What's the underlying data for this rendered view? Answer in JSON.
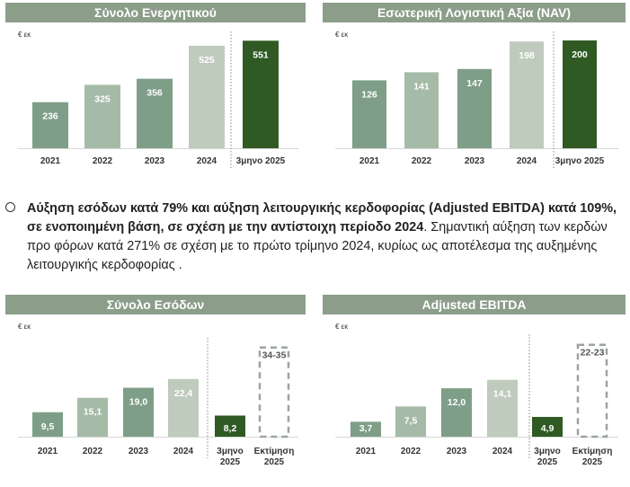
{
  "body": {
    "bullet_line1_bold": "Αύξηση εσόδων κατά 79% και αύξηση λειτουργικής κερδοφορίας (Adjusted EBITDA) κατά 109%,",
    "bullet_line2_bold": "σε ενοποιημένη βάση, σε σχέση με την αντίστοιχη περίοδο 2024",
    "bullet_line2_rest": ". Σημαντική αύξηση των κερδών",
    "bullet_line3": "προ φόρων κατά 271% σε σχέση με το πρώτο τρίμηνο 2024, κυρίως ως αποτέλεσμα της αυξημένης",
    "bullet_line4": "λειτουργικής κερδοφορίας ."
  },
  "colors": {
    "header_bg": "#8c9e8a",
    "bar_dark_green": "#7e9e88",
    "bar_light_green": "#a5bba7",
    "bar_pale": "#bfcbbd",
    "bar_highlight": "#2f5a24",
    "estimate_border": "#9ba4a0"
  },
  "chart_data": [
    {
      "type": "bar",
      "title": "Σύνολο Ενεργητικού",
      "unit_label": "€ εκ",
      "categories": [
        "2021",
        "2022",
        "2023",
        "2024",
        "3μηνο 2025"
      ],
      "values": [
        236,
        325,
        356,
        525,
        551
      ],
      "value_labels": [
        "236",
        "325",
        "356",
        "525",
        "551"
      ],
      "bar_styles": [
        "dark",
        "light",
        "dark",
        "pale",
        "highlight"
      ],
      "ylim": [
        0,
        580
      ],
      "separator_before_index": 4
    },
    {
      "type": "bar",
      "title": "Εσωτερική Λογιστική Αξία (NAV)",
      "unit_label": "€ εκ",
      "categories": [
        "2021",
        "2022",
        "2023",
        "2024",
        "3μηνο 2025"
      ],
      "values": [
        126,
        141,
        147,
        198,
        200
      ],
      "value_labels": [
        "126",
        "141",
        "147",
        "198",
        "200"
      ],
      "bar_styles": [
        "dark",
        "light",
        "dark",
        "pale",
        "highlight"
      ],
      "ylim": [
        0,
        210
      ],
      "separator_before_index": 4
    },
    {
      "type": "bar",
      "title": "Σύνολο Εσόδων",
      "unit_label": "€ εκ",
      "categories": [
        [
          "2021"
        ],
        [
          "2022"
        ],
        [
          "2023"
        ],
        [
          "2024"
        ],
        [
          "3μηνο",
          "2025"
        ],
        [
          "Εκτίμηση",
          "2025"
        ]
      ],
      "values": [
        9.5,
        15.1,
        19.0,
        22.4,
        8.2,
        35
      ],
      "value_labels": [
        "9,5",
        "15,1",
        "19,0",
        "22,4",
        "8,2",
        "34-35"
      ],
      "bar_styles": [
        "dark",
        "light",
        "dark",
        "pale",
        "highlight",
        "estimate"
      ],
      "ylim": [
        0,
        37
      ],
      "separator_before_index": 4
    },
    {
      "type": "bar",
      "title": "Adjusted EBITDA",
      "unit_label": "€ εκ",
      "categories": [
        [
          "2021"
        ],
        [
          "2022"
        ],
        [
          "2023"
        ],
        [
          "2024"
        ],
        [
          "3μηνο",
          "2025"
        ],
        [
          "Εκτίμηση",
          "2025"
        ]
      ],
      "values": [
        3.7,
        7.5,
        12.0,
        14.1,
        4.9,
        23
      ],
      "value_labels": [
        "3,7",
        "7,5",
        "12,0",
        "14,1",
        "4,9",
        "22-23"
      ],
      "bar_styles": [
        "dark",
        "light",
        "dark",
        "pale",
        "highlight",
        "estimate"
      ],
      "ylim": [
        0,
        24.5
      ],
      "separator_before_index": 4
    }
  ]
}
